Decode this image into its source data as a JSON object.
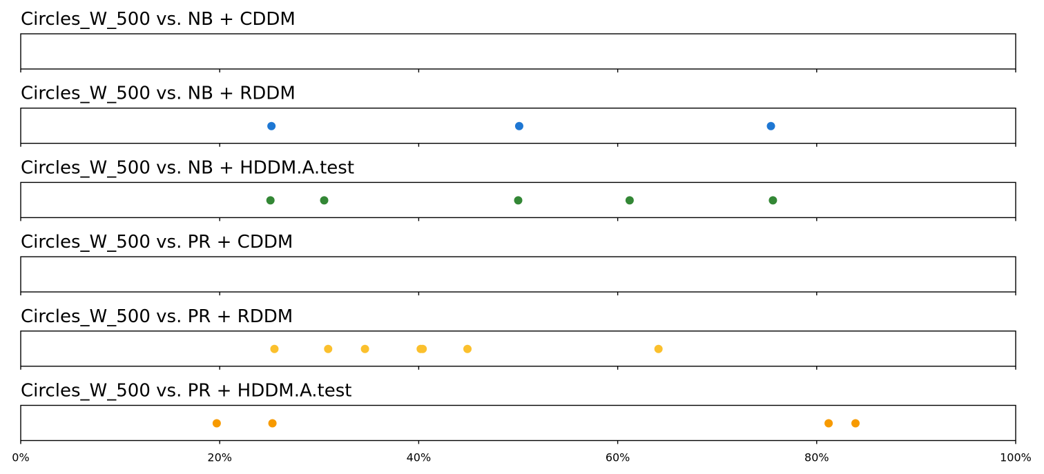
{
  "chart_data": {
    "type": "scatter",
    "x_axis": {
      "range": [
        0,
        100
      ],
      "ticks": [
        0,
        20,
        40,
        60,
        80,
        100
      ],
      "tick_labels": [
        "0%",
        "20%",
        "40%",
        "60%",
        "80%",
        "100%"
      ]
    },
    "grid": false,
    "panels": [
      {
        "title": "Circles_W_500 vs. NB + CDDM",
        "color": "#ffffff",
        "x": []
      },
      {
        "title": "Circles_W_500 vs. NB + RDDM",
        "color": "#1e77d3",
        "x": [
          25.2,
          50.1,
          75.4
        ]
      },
      {
        "title": "Circles_W_500 vs. NB + HDDM.A.test",
        "color": "#338735",
        "x": [
          25.1,
          30.5,
          50.0,
          61.2,
          75.6
        ]
      },
      {
        "title": "Circles_W_500 vs. PR + CDDM",
        "color": "#ffffff",
        "x": []
      },
      {
        "title": "Circles_W_500 vs. PR + RDDM",
        "color": "#fbc02d",
        "x": [
          25.5,
          30.9,
          34.6,
          40.2,
          40.4,
          44.9,
          64.1
        ]
      },
      {
        "title": "Circles_W_500 vs. PR + HDDM.A.test",
        "color": "#f79a00",
        "x": [
          19.7,
          25.3,
          81.2,
          83.9
        ]
      }
    ]
  }
}
